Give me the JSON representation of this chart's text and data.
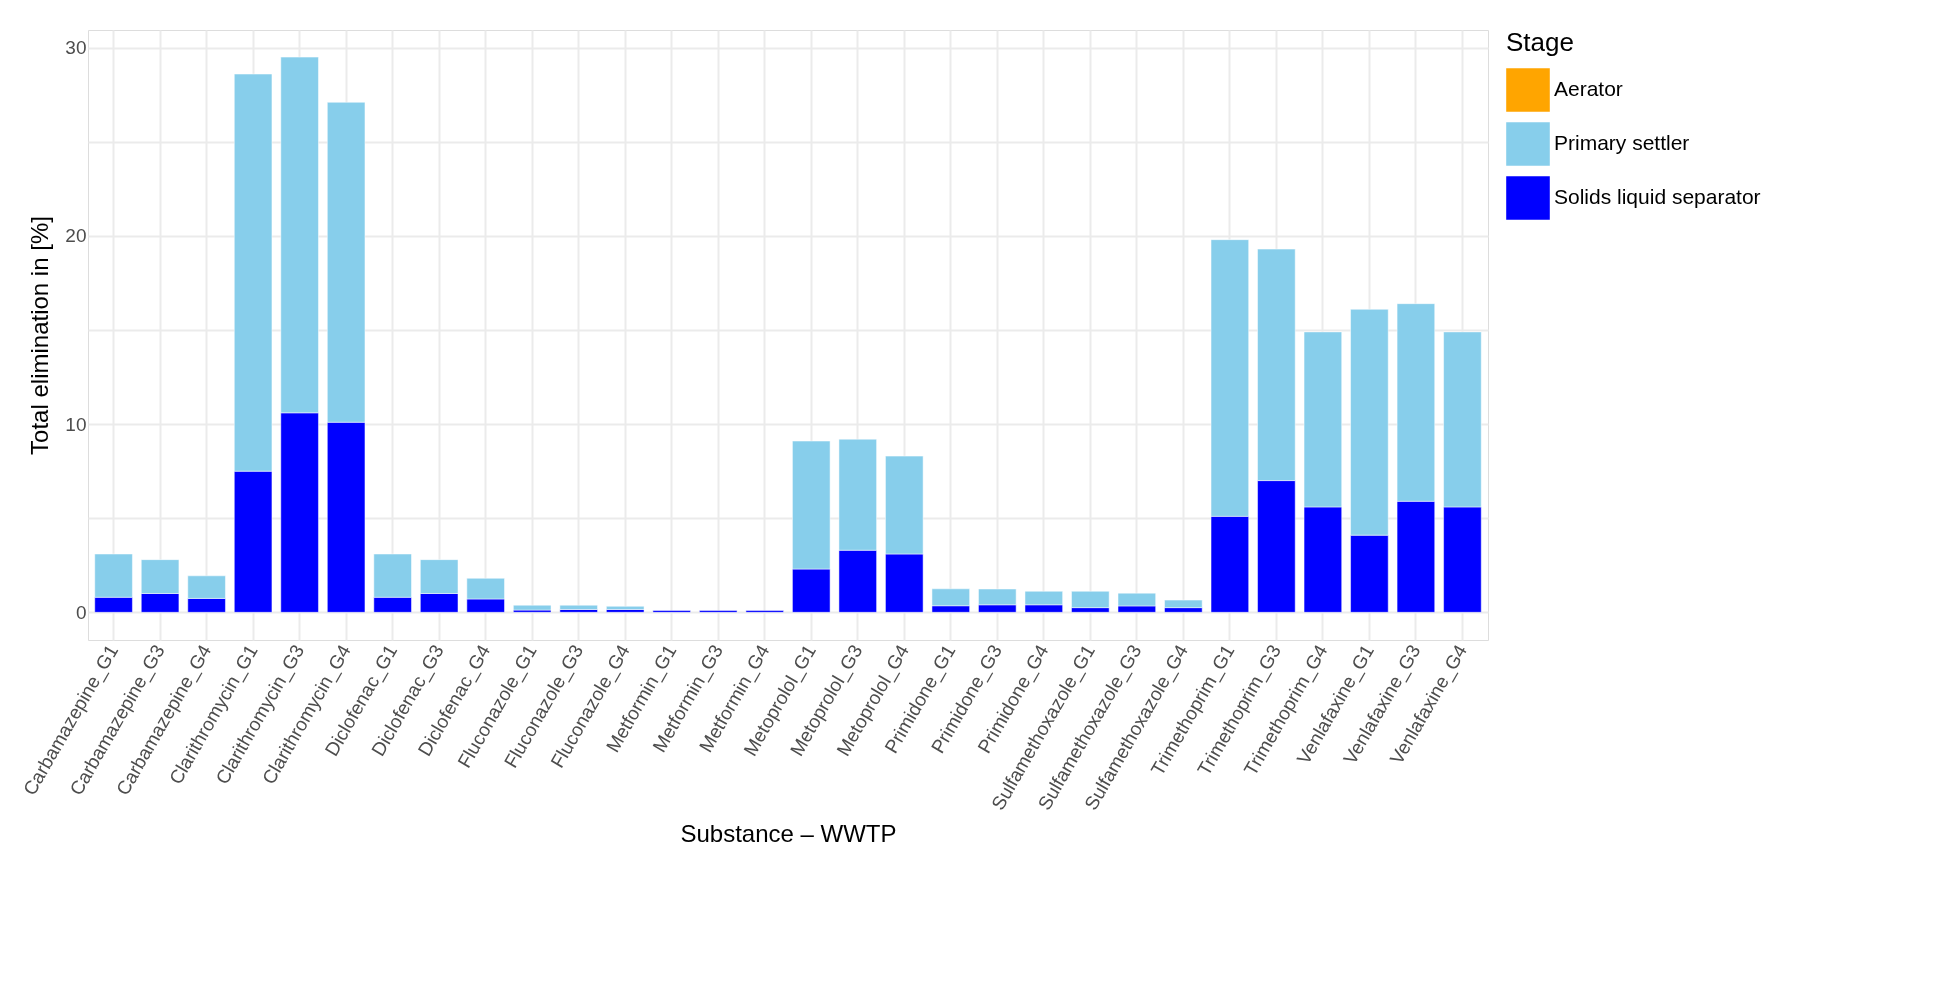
{
  "chart_data": {
    "type": "bar",
    "stacked": true,
    "xlabel": "Substance – WWTP",
    "ylabel": "Total elimination in [%]",
    "legend_title": "Stage",
    "categories": [
      "Carbamazepine_G1",
      "Carbamazepine_G3",
      "Carbamazepine_G4",
      "Clarithromycin_G1",
      "Clarithromycin_G3",
      "Clarithromycin_G4",
      "Diclofenac_G1",
      "Diclofenac_G3",
      "Diclofenac_G4",
      "Fluconazole_G1",
      "Fluconazole_G3",
      "Fluconazole_G4",
      "Metformin_G1",
      "Metformin_G3",
      "Metformin_G4",
      "Metoprolol_G1",
      "Metoprolol_G3",
      "Metoprolol_G4",
      "Primidone_G1",
      "Primidone_G3",
      "Primidone_G4",
      "Sulfamethoxazole_G1",
      "Sulfamethoxazole_G3",
      "Sulfamethoxazole_G4",
      "Trimethoprim_G1",
      "Trimethoprim_G3",
      "Trimethoprim_G4",
      "Venlafaxine_G1",
      "Venlafaxine_G3",
      "Venlafaxine_G4"
    ],
    "series": [
      {
        "name": "Solids liquid separator",
        "color": "#0000ff",
        "values": [
          0.8,
          1.0,
          0.74,
          7.5,
          10.6,
          10.1,
          0.8,
          1.0,
          0.71,
          0.12,
          0.15,
          0.15,
          0.1,
          0.1,
          0.1,
          2.3,
          3.3,
          3.1,
          0.35,
          0.4,
          0.4,
          0.25,
          0.34,
          0.25,
          5.1,
          7.0,
          5.6,
          4.1,
          5.9,
          5.6
        ]
      },
      {
        "name": "Primary settler",
        "color": "#87ceeb",
        "values": [
          2.3,
          1.8,
          1.2,
          21.1,
          18.9,
          17.0,
          2.3,
          1.8,
          1.1,
          0.26,
          0.23,
          0.17,
          null,
          null,
          null,
          6.8,
          5.9,
          5.2,
          0.9,
          0.84,
          0.72,
          0.87,
          0.68,
          0.4,
          14.7,
          12.3,
          9.3,
          12.0,
          10.5,
          9.3
        ]
      },
      {
        "name": "Aerator",
        "color": "#ffa500",
        "values": [
          null,
          null,
          null,
          null,
          null,
          null,
          null,
          null,
          null,
          null,
          null,
          null,
          null,
          null,
          null,
          null,
          null,
          null,
          null,
          null,
          null,
          null,
          null,
          null,
          null,
          null,
          null,
          null,
          null,
          null
        ]
      }
    ],
    "ylim": [
      -1.47,
      30.94
    ],
    "yticks": [
      0,
      {
        "value": 5,
        "label": null
      },
      10,
      {
        "value": 15,
        "label": null
      },
      20,
      {
        "value": 25,
        "label": null
      },
      30
    ],
    "grid": true,
    "legend": "right"
  }
}
